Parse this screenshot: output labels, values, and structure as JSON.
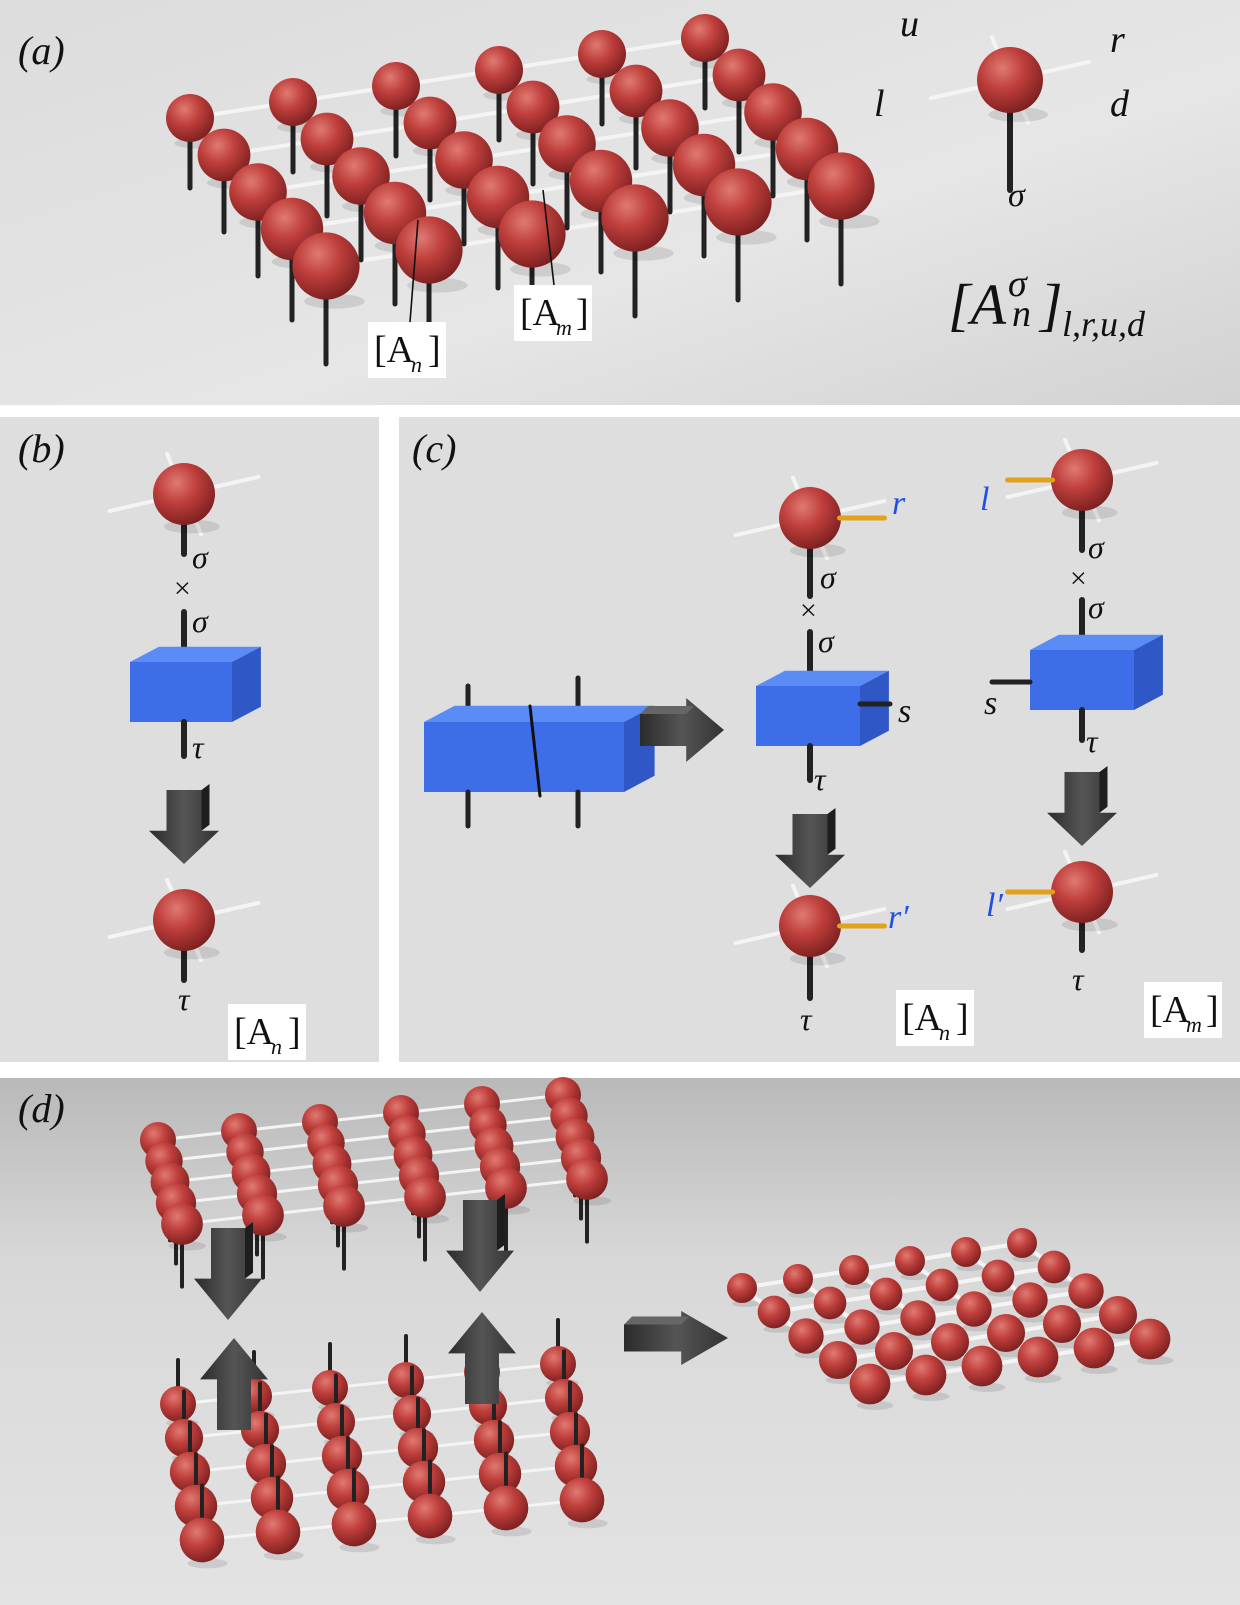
{
  "panels": {
    "a": {
      "label": "(a)"
    },
    "b": {
      "label": "(b)"
    },
    "c": {
      "label": "(c)"
    },
    "d": {
      "label": "(d)"
    }
  },
  "tensor_legs": {
    "u": "u",
    "r": "r",
    "l": "l",
    "d": "d",
    "sigma": "σ"
  },
  "formula": {
    "base": "[A",
    "sup": "σ",
    "sub_n": "n",
    "close": "]",
    "indices": "l,r,u,d"
  },
  "tags": {
    "An": {
      "base": "[A",
      "sub": "n",
      "close": "]"
    },
    "Am": {
      "base": "[A",
      "sub": "m",
      "close": "]"
    }
  },
  "symbols": {
    "sigma": "σ",
    "tau": "τ",
    "times": "×",
    "s": "s",
    "r": "r",
    "l": "l",
    "r_prime": "r′",
    "l_prime": "l′"
  },
  "colors": {
    "sphere": "#b93a3a",
    "cube": "#3d6ee8",
    "link_highlight": "#e0a21a",
    "label_blue": "#1f4fe6",
    "arrow": "#3a3a3a"
  }
}
